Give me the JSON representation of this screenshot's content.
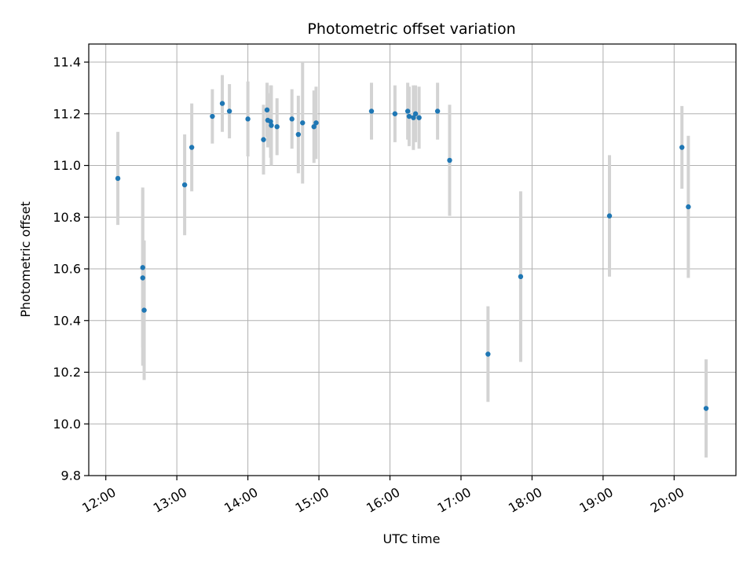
{
  "chart_data": {
    "type": "scatter",
    "title": "Photometric offset variation",
    "xlabel": "UTC time",
    "ylabel": "Photometric offset",
    "ylim": [
      9.8,
      11.47
    ],
    "xlim_hours": [
      11.76,
      20.87
    ],
    "grid": true,
    "x_ticks": [
      {
        "value": 12,
        "label": "12:00"
      },
      {
        "value": 13,
        "label": "13:00"
      },
      {
        "value": 14,
        "label": "14:00"
      },
      {
        "value": 15,
        "label": "15:00"
      },
      {
        "value": 16,
        "label": "16:00"
      },
      {
        "value": 17,
        "label": "17:00"
      },
      {
        "value": 18,
        "label": "18:00"
      },
      {
        "value": 19,
        "label": "19:00"
      },
      {
        "value": 20,
        "label": "20:00"
      }
    ],
    "y_ticks": [
      {
        "value": 9.8,
        "label": "9.8"
      },
      {
        "value": 10.0,
        "label": "10.0"
      },
      {
        "value": 10.2,
        "label": "10.2"
      },
      {
        "value": 10.4,
        "label": "10.4"
      },
      {
        "value": 10.6,
        "label": "10.6"
      },
      {
        "value": 10.8,
        "label": "10.8"
      },
      {
        "value": 11.0,
        "label": "11.0"
      },
      {
        "value": 11.2,
        "label": "11.2"
      },
      {
        "value": 11.4,
        "label": "11.4"
      }
    ],
    "colors": {
      "point": "#1f77b4",
      "errorbar": "#d3d3d3",
      "grid": "#b0b0b0"
    },
    "points": [
      {
        "t": 12.17,
        "y": 10.95,
        "err": 0.18
      },
      {
        "t": 12.52,
        "y": 10.605,
        "err": 0.31
      },
      {
        "t": 12.52,
        "y": 10.565,
        "err": 0.34
      },
      {
        "t": 12.54,
        "y": 10.44,
        "err": 0.27
      },
      {
        "t": 13.11,
        "y": 10.925,
        "err": 0.195
      },
      {
        "t": 13.21,
        "y": 11.07,
        "err": 0.17
      },
      {
        "t": 13.5,
        "y": 11.19,
        "err": 0.105
      },
      {
        "t": 13.64,
        "y": 11.24,
        "err": 0.11
      },
      {
        "t": 13.74,
        "y": 11.21,
        "err": 0.105
      },
      {
        "t": 14.0,
        "y": 11.18,
        "err": 0.145
      },
      {
        "t": 14.22,
        "y": 11.1,
        "err": 0.135
      },
      {
        "t": 14.27,
        "y": 11.215,
        "err": 0.105
      },
      {
        "t": 14.28,
        "y": 11.175,
        "err": 0.105
      },
      {
        "t": 14.32,
        "y": 11.17,
        "err": 0.14
      },
      {
        "t": 14.33,
        "y": 11.155,
        "err": 0.155
      },
      {
        "t": 14.41,
        "y": 11.15,
        "err": 0.11
      },
      {
        "t": 14.62,
        "y": 11.18,
        "err": 0.115
      },
      {
        "t": 14.71,
        "y": 11.12,
        "err": 0.15
      },
      {
        "t": 14.77,
        "y": 11.165,
        "err": 0.235
      },
      {
        "t": 14.93,
        "y": 11.15,
        "err": 0.14
      },
      {
        "t": 14.96,
        "y": 11.165,
        "err": 0.14
      },
      {
        "t": 15.74,
        "y": 11.21,
        "err": 0.11
      },
      {
        "t": 16.07,
        "y": 11.2,
        "err": 0.11
      },
      {
        "t": 16.25,
        "y": 11.21,
        "err": 0.11
      },
      {
        "t": 16.27,
        "y": 11.19,
        "err": 0.115
      },
      {
        "t": 16.33,
        "y": 11.185,
        "err": 0.125
      },
      {
        "t": 16.36,
        "y": 11.2,
        "err": 0.11
      },
      {
        "t": 16.41,
        "y": 11.185,
        "err": 0.12
      },
      {
        "t": 16.67,
        "y": 11.21,
        "err": 0.11
      },
      {
        "t": 16.84,
        "y": 11.02,
        "err": 0.215
      },
      {
        "t": 17.38,
        "y": 10.27,
        "err": 0.185
      },
      {
        "t": 17.84,
        "y": 10.57,
        "err": 0.33
      },
      {
        "t": 19.09,
        "y": 10.805,
        "err": 0.235
      },
      {
        "t": 20.11,
        "y": 11.07,
        "err": 0.16
      },
      {
        "t": 20.2,
        "y": 10.84,
        "err": 0.275
      },
      {
        "t": 20.45,
        "y": 10.06,
        "err": 0.19
      }
    ]
  }
}
